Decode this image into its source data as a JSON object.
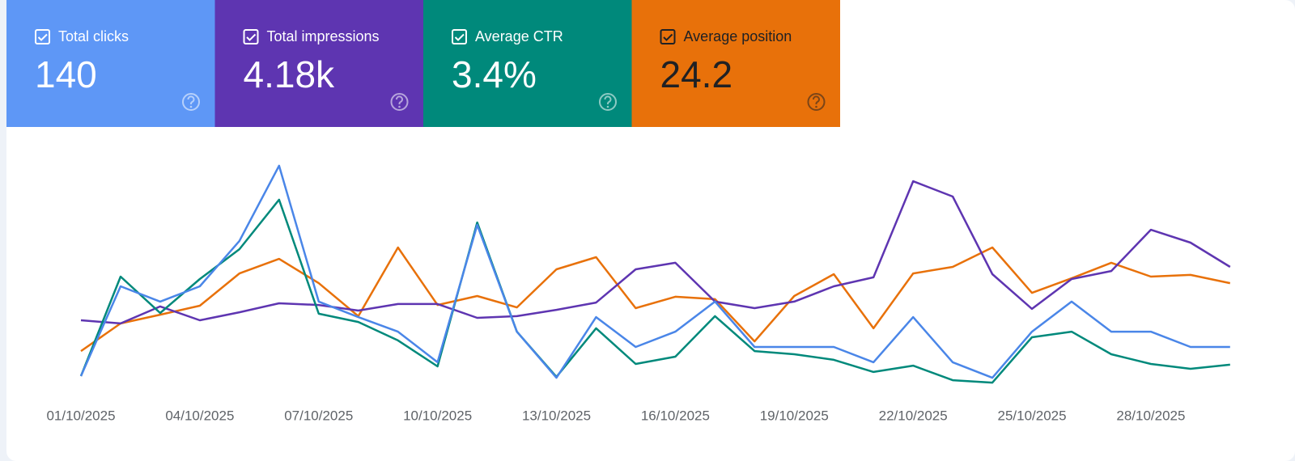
{
  "cards": [
    {
      "label": "Total clicks",
      "value": "140",
      "color": "#5e97f6",
      "text_color": "#ffffff"
    },
    {
      "label": "Total impressions",
      "value": "4.18k",
      "color": "#5e35b1",
      "text_color": "#ffffff"
    },
    {
      "label": "Average CTR",
      "value": "3.4%",
      "color": "#00897b",
      "text_color": "#ffffff"
    },
    {
      "label": "Average position",
      "value": "24.2",
      "color": "#e8710a",
      "text_color": "#202124"
    }
  ],
  "chart_data": {
    "type": "line",
    "categories": [
      "01/10/2025",
      null,
      null,
      "04/10/2025",
      null,
      null,
      "07/10/2025",
      null,
      null,
      "10/10/2025",
      null,
      null,
      "13/10/2025",
      null,
      null,
      "16/10/2025",
      null,
      null,
      "19/10/2025",
      null,
      null,
      "22/10/2025",
      null,
      null,
      "25/10/2025",
      null,
      null,
      "28/10/2025",
      null,
      null
    ],
    "ylim": [
      0,
      100
    ],
    "series": [
      {
        "color": "#e8710a",
        "values": [
          20.3,
          31.7,
          35.3,
          39,
          52.3,
          58.3,
          48.3,
          34.7,
          63,
          39.3,
          43,
          38.3,
          54,
          59,
          38,
          42.7,
          41.7,
          24.3,
          43,
          52,
          29.7,
          52.3,
          55,
          63,
          44.3,
          50.3,
          56.7,
          51,
          51.7,
          48.3
        ]
      },
      {
        "color": "#5e35b1",
        "values": [
          33,
          31.7,
          38.7,
          33,
          36.3,
          40,
          39.3,
          37,
          39.7,
          39.7,
          34,
          34.7,
          37.3,
          40.3,
          54,
          56.7,
          40.7,
          38,
          40.7,
          47,
          50.7,
          90.3,
          84,
          52,
          37.7,
          50,
          53.3,
          70.3,
          65,
          55
        ]
      },
      {
        "color": "#00897b",
        "values": [
          10,
          51,
          36,
          50,
          62.3,
          82.7,
          35.7,
          32.3,
          24.7,
          14,
          73.3,
          28.3,
          9.7,
          29.7,
          15,
          18,
          34.7,
          20.3,
          19,
          16.7,
          11.7,
          14.3,
          8.3,
          7.3,
          26,
          28.3,
          19,
          15,
          13,
          14.7
        ]
      },
      {
        "color": "#4a86e8",
        "values": [
          10,
          47,
          40.7,
          47,
          65.7,
          96.7,
          40.7,
          34.3,
          28.3,
          15.7,
          72.3,
          28.3,
          9.3,
          34.3,
          22,
          28.3,
          40.7,
          22,
          22,
          22,
          15.7,
          34.3,
          15.7,
          9.3,
          28.3,
          40.7,
          28.3,
          28.3,
          22,
          22
        ]
      }
    ]
  }
}
